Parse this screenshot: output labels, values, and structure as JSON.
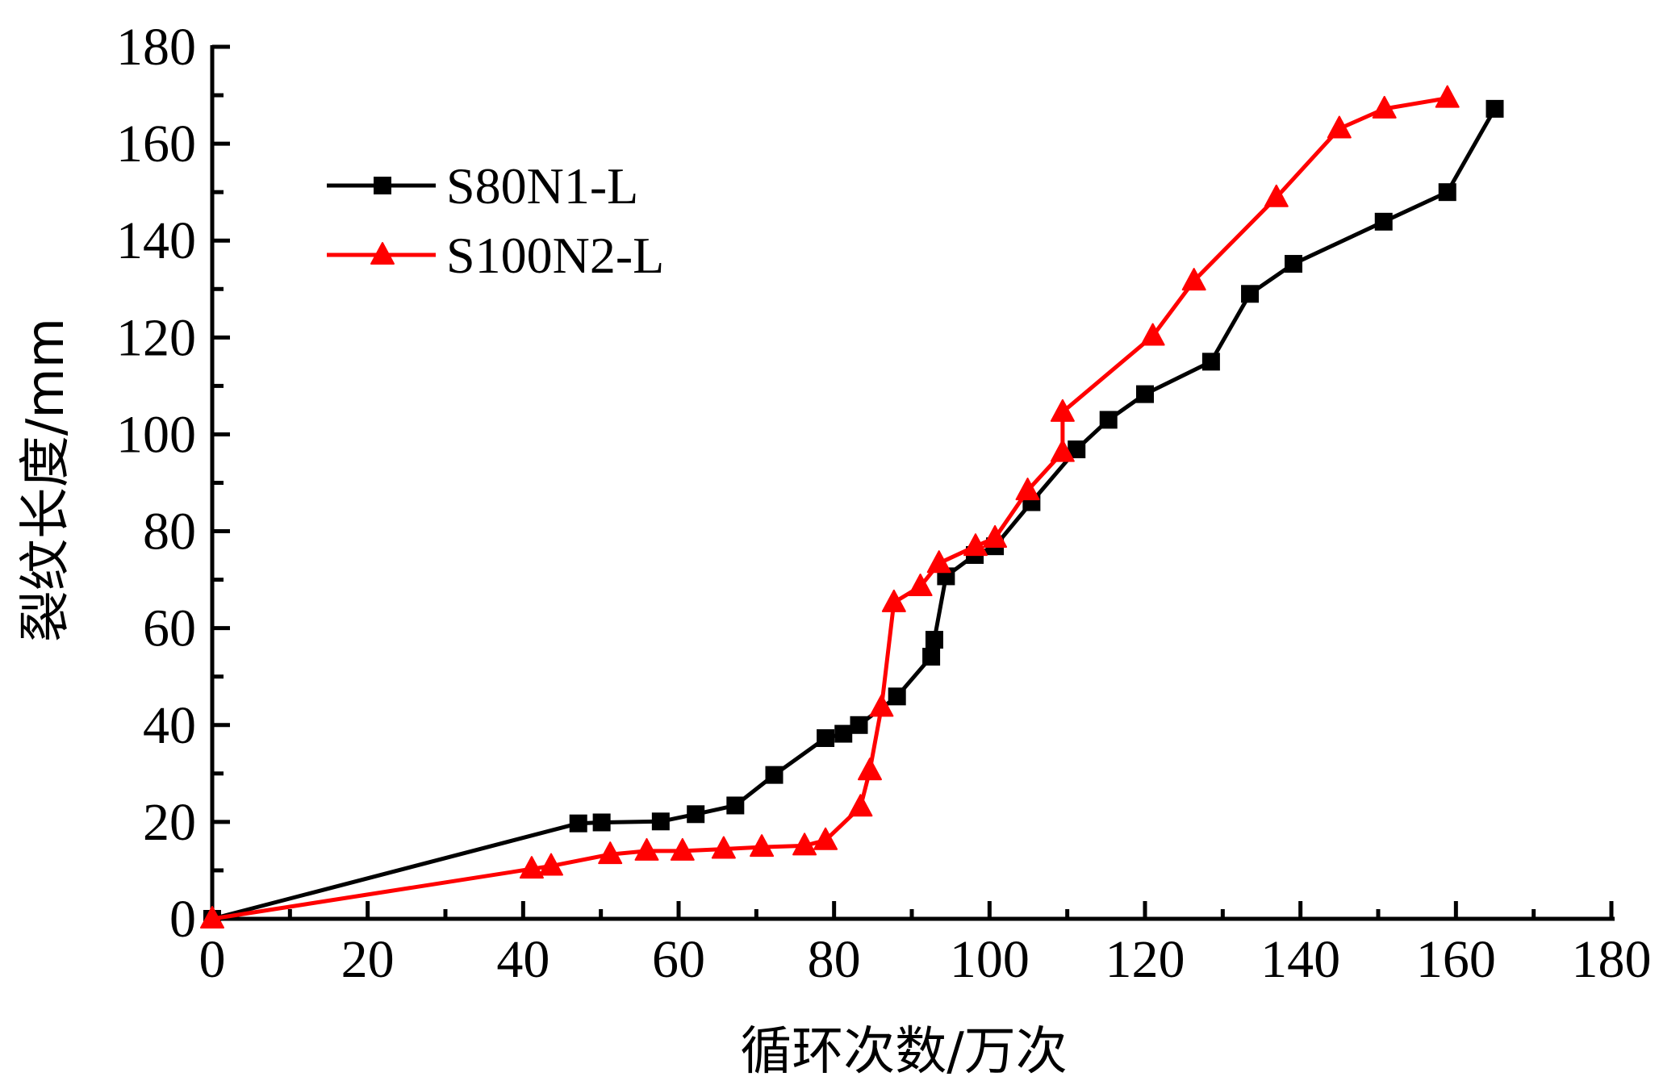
{
  "chart_data": {
    "type": "line",
    "title": "",
    "xlabel": "循环次数/万次",
    "ylabel": "裂纹长度/mm",
    "xlim": [
      0,
      180
    ],
    "ylim": [
      0,
      180
    ],
    "xticks": [
      "0",
      "20",
      "40",
      "60",
      "80",
      "100",
      "120",
      "140",
      "160",
      "180"
    ],
    "yticks": [
      "0",
      "20",
      "40",
      "60",
      "80",
      "100",
      "120",
      "140",
      "160",
      "180"
    ],
    "grid": false,
    "legend_position": "top-left",
    "series": [
      {
        "name": "S80N1-L",
        "color": "#000000",
        "marker": "square",
        "x": [
          0,
          47.1,
          50.1,
          57.7,
          62.2,
          67.3,
          72.3,
          78.9,
          81.2,
          83.2,
          88.1,
          92.5,
          92.9,
          94.4,
          98.1,
          100.7,
          105.4,
          111.2,
          115.3,
          120.0,
          128.5,
          133.5,
          139.1,
          150.7,
          158.9,
          165.0
        ],
        "y": [
          0,
          19.7,
          19.9,
          20.1,
          21.6,
          23.4,
          29.7,
          37.3,
          38.2,
          40.0,
          45.9,
          54.1,
          57.6,
          70.7,
          75.1,
          76.9,
          86.0,
          96.9,
          103.0,
          108.3,
          115.0,
          129.0,
          135.2,
          143.9,
          150.0,
          167.2
        ]
      },
      {
        "name": "S100N2-L",
        "color": "#ff0000",
        "marker": "triangle",
        "x": [
          0,
          41.1,
          43.6,
          51.2,
          55.9,
          60.5,
          65.8,
          70.7,
          76.2,
          78.9,
          83.4,
          84.6,
          86.1,
          87.7,
          91.1,
          93.5,
          98.2,
          100.7,
          104.9,
          109.4,
          109.4,
          121.0,
          126.3,
          136.9,
          145.0,
          150.8,
          158.9
        ],
        "y": [
          0,
          10.3,
          10.9,
          13.3,
          14.0,
          14.0,
          14.4,
          14.8,
          15.1,
          16.2,
          23.1,
          30.6,
          43.7,
          65.3,
          68.6,
          73.4,
          76.9,
          78.6,
          88.4,
          96.3,
          104.6,
          120.3,
          131.7,
          148.9,
          163.1,
          167.2,
          169.4
        ]
      }
    ]
  }
}
